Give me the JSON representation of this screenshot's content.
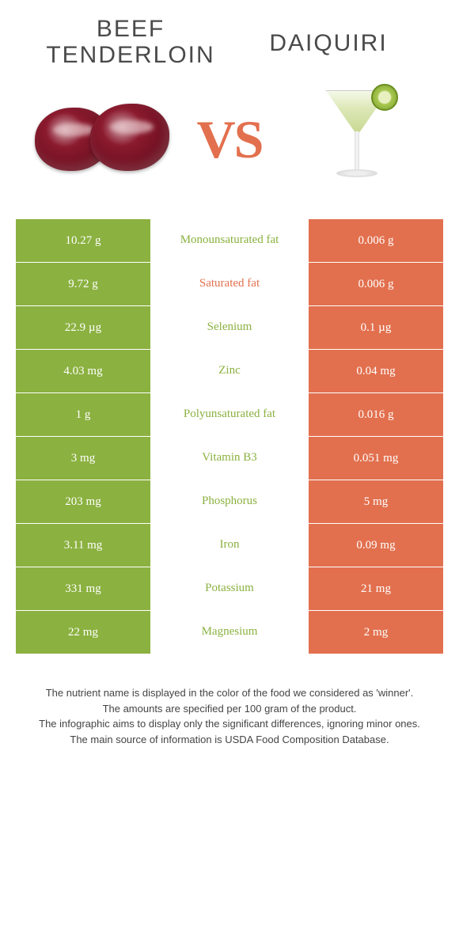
{
  "colors": {
    "left": "#8bb140",
    "right": "#e2704e",
    "vs": "#e2704e",
    "title": "#4a4a4a",
    "background": "#ffffff"
  },
  "header": {
    "left_title": "BEEF TENDERLOIN",
    "right_title": "DAIQUIRI",
    "vs_label": "VS"
  },
  "rows": [
    {
      "left": "10.27 g",
      "label": "Monounsaturated fat",
      "right": "0.006 g",
      "winner": "left"
    },
    {
      "left": "9.72 g",
      "label": "Saturated fat",
      "right": "0.006 g",
      "winner": "right"
    },
    {
      "left": "22.9 µg",
      "label": "Selenium",
      "right": "0.1 µg",
      "winner": "left"
    },
    {
      "left": "4.03 mg",
      "label": "Zinc",
      "right": "0.04 mg",
      "winner": "left"
    },
    {
      "left": "1 g",
      "label": "Polyunsaturated fat",
      "right": "0.016 g",
      "winner": "left"
    },
    {
      "left": "3 mg",
      "label": "Vitamin B3",
      "right": "0.051 mg",
      "winner": "left"
    },
    {
      "left": "203 mg",
      "label": "Phosphorus",
      "right": "5 mg",
      "winner": "left"
    },
    {
      "left": "3.11 mg",
      "label": "Iron",
      "right": "0.09 mg",
      "winner": "left"
    },
    {
      "left": "331 mg",
      "label": "Potassium",
      "right": "21 mg",
      "winner": "left"
    },
    {
      "left": "22 mg",
      "label": "Magnesium",
      "right": "2 mg",
      "winner": "left"
    }
  ],
  "footer": {
    "line1": "The nutrient name is displayed in the color of the food we considered as 'winner'.",
    "line2": "The amounts are specified per 100 gram of the product.",
    "line3": "The infographic aims to display only the significant differences, ignoring minor ones.",
    "line4": "The main source of information is USDA Food Composition Database."
  }
}
